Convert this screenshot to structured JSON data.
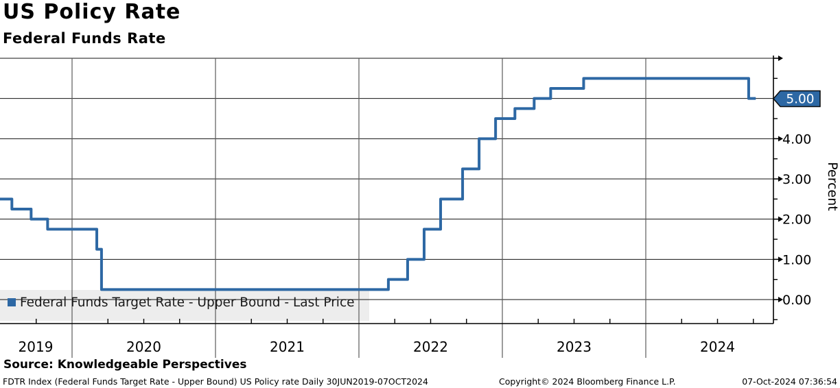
{
  "header": {
    "title": "US Policy Rate",
    "subtitle": "Federal Funds Rate"
  },
  "legend": {
    "label": "Federal Funds Target Rate - Upper Bound - Last Price"
  },
  "last_price_tag": "5.00",
  "footer": {
    "source": "Source: Knowledgeable Perspectives",
    "description": "FDTR Index (Federal Funds Target Rate - Upper Bound) US Policy rate  Daily 30JUN2019-07OCT2024",
    "copyright": "Copyright© 2024 Bloomberg Finance L.P.",
    "timestamp": "07-Oct-2024 07:36:54"
  },
  "colors": {
    "line": "#2d68a4",
    "tag_fill": "#2d68a4",
    "tag_tip": "#1f3e63",
    "tag_text": "#ffffff",
    "legend_marker": "#2d68a4",
    "legend_bg": "#ececec",
    "grid": "#111111",
    "year_line": "#5a5a5a",
    "axis": "#000000"
  },
  "chart_data": {
    "type": "line",
    "style": "step-after",
    "title": "US Policy Rate",
    "subtitle": "Federal Funds Rate",
    "xlabel": "",
    "ylabel": "Percent",
    "x_range": [
      "2019-06-30",
      "2024-10-07"
    ],
    "ylim": [
      -0.6,
      6.0
    ],
    "grid": true,
    "legend_position": "bottom-left",
    "y_axis_side": "right",
    "y_major_tick_values": [
      0,
      1,
      2,
      3,
      4,
      5,
      6
    ],
    "y_minor_tick_values": [
      -0.5,
      0.5,
      1.5,
      2.5,
      3.5,
      4.5,
      5.5
    ],
    "y_tick_labels": [
      {
        "value": 0,
        "label": "0.00"
      },
      {
        "value": 1,
        "label": "1.00"
      },
      {
        "value": 2,
        "label": "2.00"
      },
      {
        "value": 3,
        "label": "3.00"
      },
      {
        "value": 4,
        "label": "4.00"
      }
    ],
    "x_year_labels": [
      "2019",
      "2020",
      "2021",
      "2022",
      "2023",
      "2024"
    ],
    "x_year_gridlines": [
      2020,
      2021,
      2022,
      2023,
      2024
    ],
    "series": [
      {
        "name": "Federal Funds Target Rate - Upper Bound",
        "last_price": 5.0,
        "points": [
          {
            "date": "2019-06-30",
            "value": 2.5
          },
          {
            "date": "2019-08-01",
            "value": 2.25
          },
          {
            "date": "2019-09-19",
            "value": 2.0
          },
          {
            "date": "2019-10-31",
            "value": 1.75
          },
          {
            "date": "2020-03-04",
            "value": 1.25
          },
          {
            "date": "2020-03-16",
            "value": 0.25
          },
          {
            "date": "2022-03-17",
            "value": 0.5
          },
          {
            "date": "2022-05-05",
            "value": 1.0
          },
          {
            "date": "2022-06-16",
            "value": 1.75
          },
          {
            "date": "2022-07-28",
            "value": 2.5
          },
          {
            "date": "2022-09-22",
            "value": 3.25
          },
          {
            "date": "2022-11-03",
            "value": 4.0
          },
          {
            "date": "2022-12-15",
            "value": 4.5
          },
          {
            "date": "2023-02-02",
            "value": 4.75
          },
          {
            "date": "2023-03-23",
            "value": 5.0
          },
          {
            "date": "2023-05-04",
            "value": 5.25
          },
          {
            "date": "2023-07-27",
            "value": 5.5
          },
          {
            "date": "2024-09-19",
            "value": 5.0
          },
          {
            "date": "2024-10-07",
            "value": 5.0
          }
        ]
      }
    ]
  }
}
